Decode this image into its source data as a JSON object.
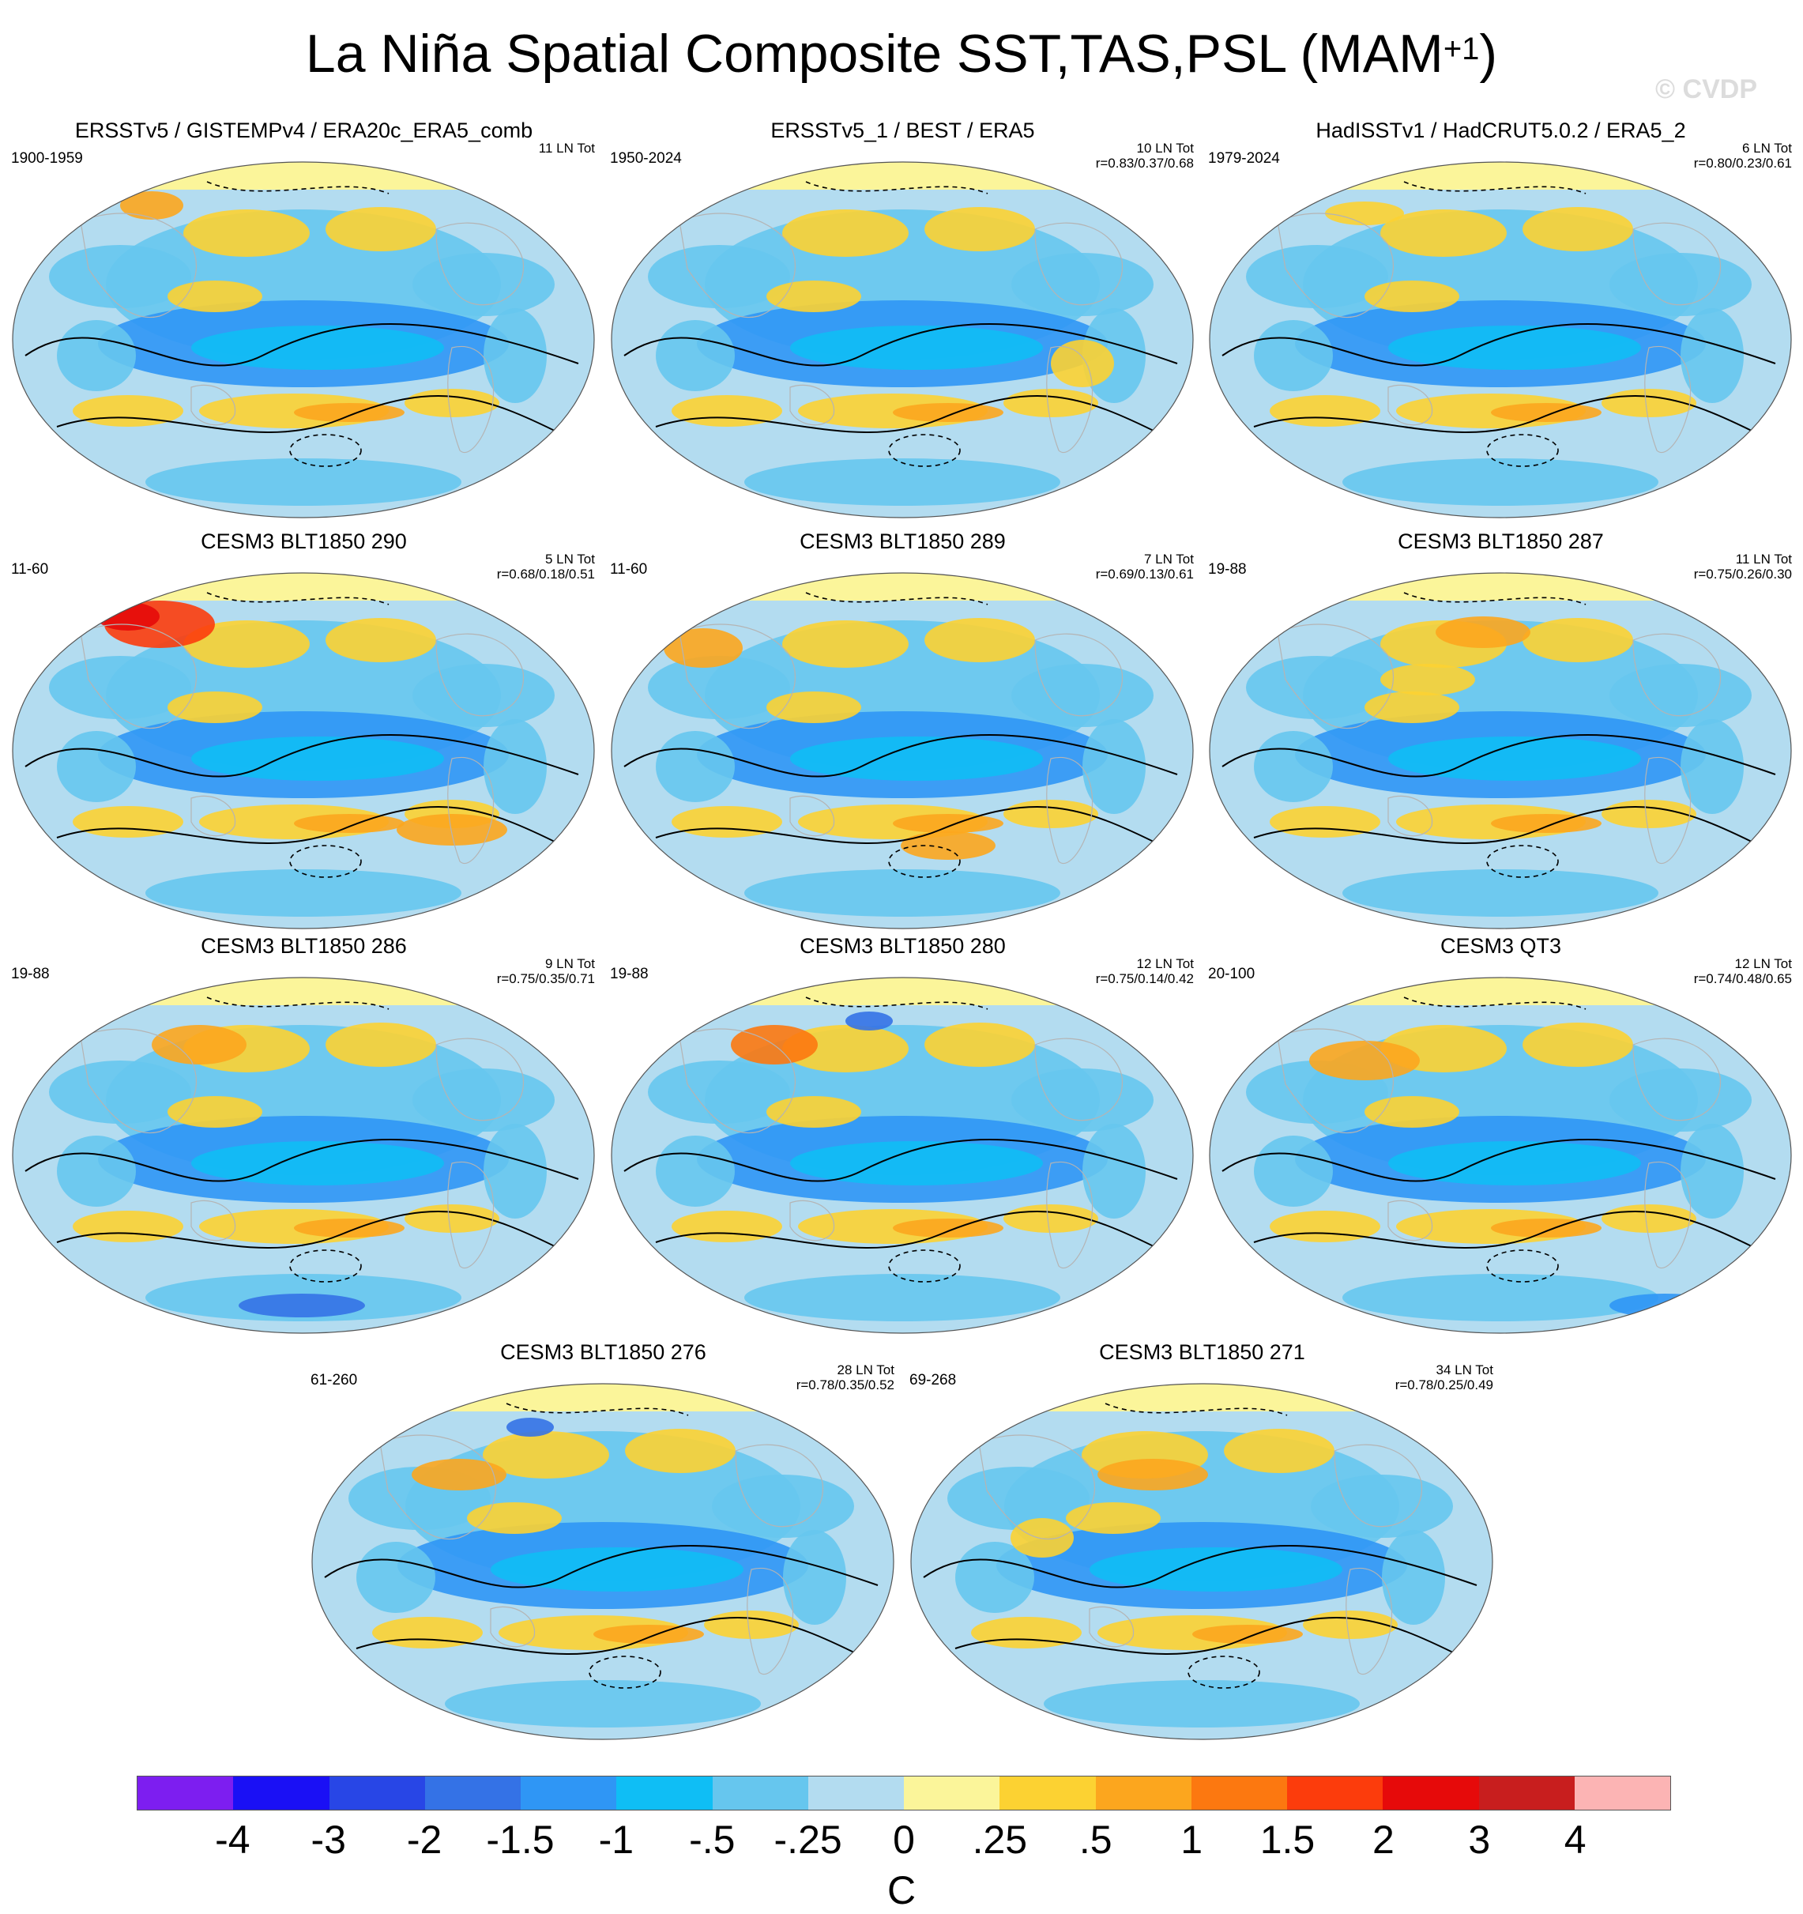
{
  "figure": {
    "title": "La Niña Spatial Composite SST,TAS,PSL (MAM",
    "title_sup": "+1",
    "title_close": ")",
    "copyright": "© CVDP"
  },
  "panels": [
    {
      "title": "ERSSTv5 / GISTEMPv4 / ERA20c_ERA5_comb",
      "years": "1900-1959",
      "count": "11 LN Tot",
      "corr": ""
    },
    {
      "title": "ERSSTv5_1 / BEST / ERA5",
      "years": "1950-2024",
      "count": "10 LN Tot",
      "corr": "r=0.83/0.37/0.68"
    },
    {
      "title": "HadISSTv1 / HadCRUT5.0.2 / ERA5_2",
      "years": "1979-2024",
      "count": "6 LN Tot",
      "corr": "r=0.80/0.23/0.61"
    },
    {
      "title": "CESM3 BLT1850 290",
      "years": "11-60",
      "count": "5 LN Tot",
      "corr": "r=0.68/0.18/0.51"
    },
    {
      "title": "CESM3 BLT1850 289",
      "years": "11-60",
      "count": "7 LN Tot",
      "corr": "r=0.69/0.13/0.61"
    },
    {
      "title": "CESM3 BLT1850 287",
      "years": "19-88",
      "count": "11 LN Tot",
      "corr": "r=0.75/0.26/0.30"
    },
    {
      "title": "CESM3 BLT1850 286",
      "years": "19-88",
      "count": "9 LN Tot",
      "corr": "r=0.75/0.35/0.71"
    },
    {
      "title": "CESM3 BLT1850 280",
      "years": "19-88",
      "count": "12 LN Tot",
      "corr": "r=0.75/0.14/0.42"
    },
    {
      "title": "CESM3 QT3",
      "years": "20-100",
      "count": "12 LN Tot",
      "corr": "r=0.74/0.48/0.65"
    },
    {
      "title": "CESM3 BLT1850 276",
      "years": "61-260",
      "count": "28 LN Tot",
      "corr": "r=0.78/0.35/0.52"
    },
    {
      "title": "CESM3 BLT1850 271",
      "years": "69-268",
      "count": "34 LN Tot",
      "corr": "r=0.78/0.25/0.49"
    }
  ],
  "colorbar": {
    "unit": "C",
    "labels": [
      "-4",
      "-3",
      "-2",
      "-1.5",
      "-1",
      "-.5",
      "-.25",
      "0",
      ".25",
      ".5",
      "1",
      "1.5",
      "2",
      "3",
      "4"
    ],
    "colors": [
      "#7d1ef0",
      "#1a10f5",
      "#2846e6",
      "#3472e6",
      "#2f96f5",
      "#0fbef5",
      "#66c6ee",
      "#b3dcf0",
      "#fbf59a",
      "#fcd232",
      "#fca61e",
      "#fc7810",
      "#fc3c0c",
      "#e60a0a",
      "#c81e1e",
      "#fcb4b4"
    ],
    "colors_meaning": "sixteen color classes of the temperature anomaly scale, coolest to warmest"
  },
  "styles": {
    "contour_line": "#000000",
    "continent_outline": "#b4b4b4"
  }
}
